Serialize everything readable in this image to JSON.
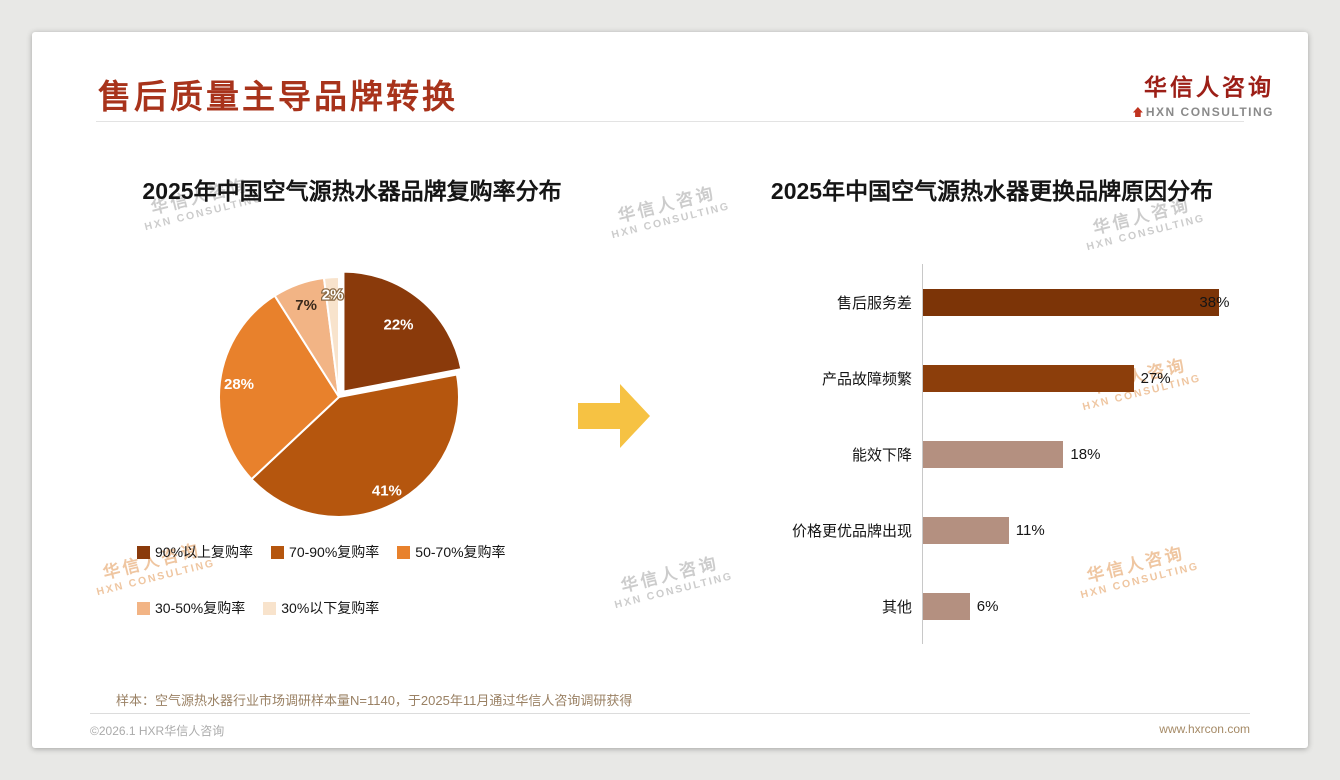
{
  "slide": {
    "title": "售后质量主导品牌转换",
    "logo": {
      "name": "华信人咨询",
      "subtitle": "HXN CONSULTING"
    },
    "watermark": {
      "line1": "华信人咨询",
      "line2": "HXN CONSULTING"
    },
    "sample_note": "样本：空气源热水器行业市场调研样本量N=1140，于2025年11月通过华信人咨询调研获得",
    "footer": {
      "copyright": "©2026.1 HXR华信人咨询",
      "website": "www.hxrcon.com"
    },
    "arrow_color": "#F6C243"
  },
  "chart_data": [
    {
      "type": "pie",
      "title": "2025年中国空气源热水器品牌复购率分布",
      "labels": [
        "90%以上复购率",
        "70-90%复购率",
        "50-70%复购率",
        "30-50%复购率",
        "30%以下复购率"
      ],
      "values": [
        22,
        41,
        28,
        7,
        2
      ],
      "data_labels": [
        "22%",
        "41%",
        "28%",
        "7%",
        "2%"
      ],
      "colors": [
        "#8A3A0B",
        "#B5560E",
        "#E8812C",
        "#F2B485",
        "#F8E3CC"
      ],
      "legend_position": "bottom-left",
      "exploded_slice": "90%以上复购率"
    },
    {
      "type": "bar",
      "orientation": "horizontal",
      "title": "2025年中国空气源热水器更换品牌原因分布",
      "categories": [
        "售后服务差",
        "产品故障频繁",
        "能效下降",
        "价格更优品牌出现",
        "其他"
      ],
      "values": [
        38,
        27,
        18,
        11,
        6
      ],
      "value_labels": [
        "38%",
        "27%",
        "18%",
        "11%",
        "6%"
      ],
      "colors": [
        "#7C3407",
        "#8C3E0B",
        "#B49080",
        "#B49080",
        "#B49080"
      ],
      "xlim": [
        0,
        40
      ],
      "grid": false
    }
  ]
}
